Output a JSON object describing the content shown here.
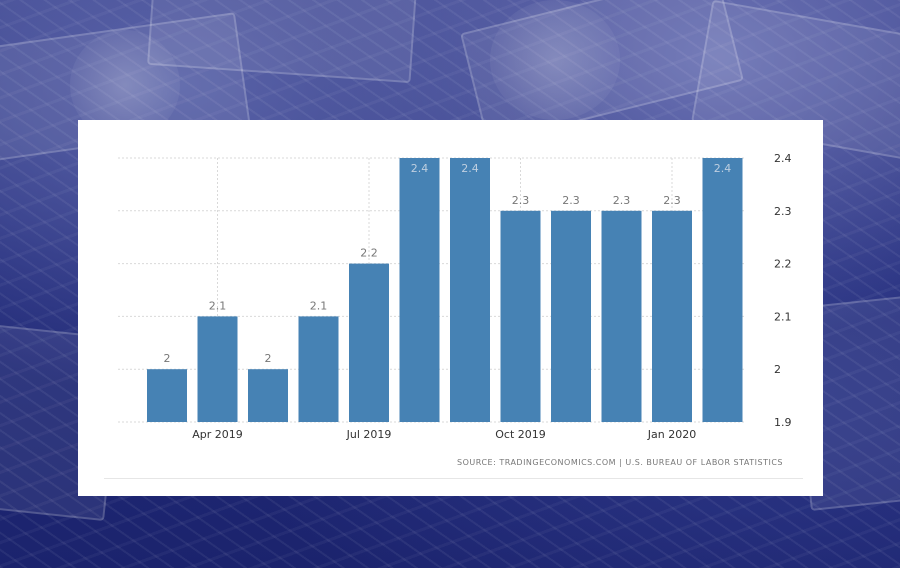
{
  "source_text": "SOURCE: TRADINGECONOMICS.COM  |  U.S. BUREAU OF LABOR STATISTICS",
  "chart_data": {
    "type": "bar",
    "categories": [
      "Mar 2019",
      "Apr 2019",
      "May 2019",
      "Jun 2019",
      "Jul 2019",
      "Aug 2019",
      "Sep 2019",
      "Oct 2019",
      "Nov 2019",
      "Dec 2019",
      "Jan 2020",
      "Feb 2020"
    ],
    "values": [
      2.0,
      2.1,
      2.0,
      2.1,
      2.2,
      2.4,
      2.4,
      2.3,
      2.3,
      2.3,
      2.3,
      2.4
    ],
    "data_labels": [
      "2",
      "2.1",
      "2",
      "2.1",
      "2.2",
      "2.4",
      "2.4",
      "2.3",
      "2.3",
      "2.3",
      "2.3",
      "2.4"
    ],
    "x_tick_labels": [
      "Apr 2019",
      "Jul 2019",
      "Oct 2019",
      "Jan 2020"
    ],
    "y_ticks": [
      1.9,
      2.0,
      2.1,
      2.2,
      2.3,
      2.4
    ],
    "y_tick_labels": [
      "1.9",
      "2",
      "2.1",
      "2.2",
      "2.3",
      "2.4"
    ],
    "ylim": [
      1.9,
      2.4
    ],
    "y_axis_side": "right",
    "grid": true,
    "bar_color": "#4682b4",
    "title": "",
    "xlabel": "",
    "ylabel": ""
  }
}
